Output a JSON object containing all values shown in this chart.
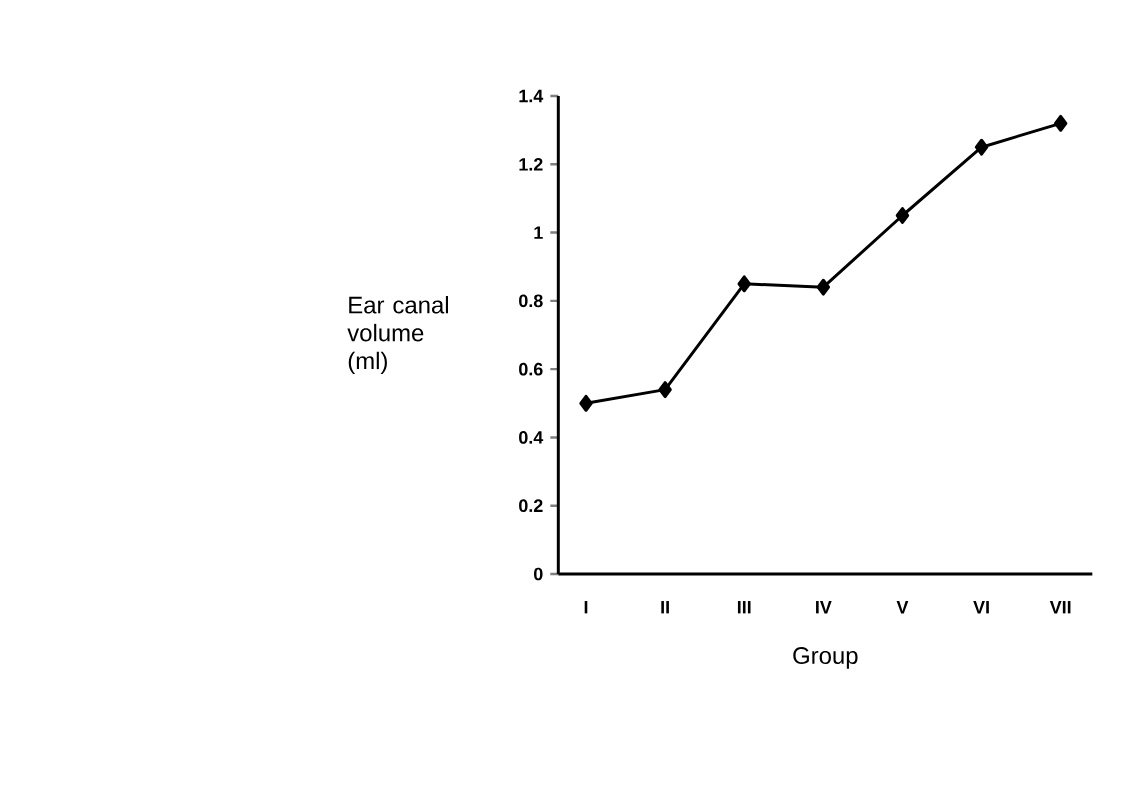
{
  "chart_data": {
    "type": "line",
    "xlabel": "Group",
    "ylabel": "Ear canal volume (ml)",
    "categories": [
      "I",
      "II",
      "III",
      "IV",
      "V",
      "VI",
      "VII"
    ],
    "values": [
      0.5,
      0.54,
      0.85,
      0.84,
      1.05,
      1.25,
      1.32
    ],
    "color": "#000000",
    "marker": "diamond",
    "line_style": "solid",
    "grid": false,
    "ylim": [
      0,
      1.4
    ],
    "yticks": [
      0,
      0.2,
      0.4,
      0.6,
      0.8,
      1,
      1.2,
      1.4
    ]
  }
}
